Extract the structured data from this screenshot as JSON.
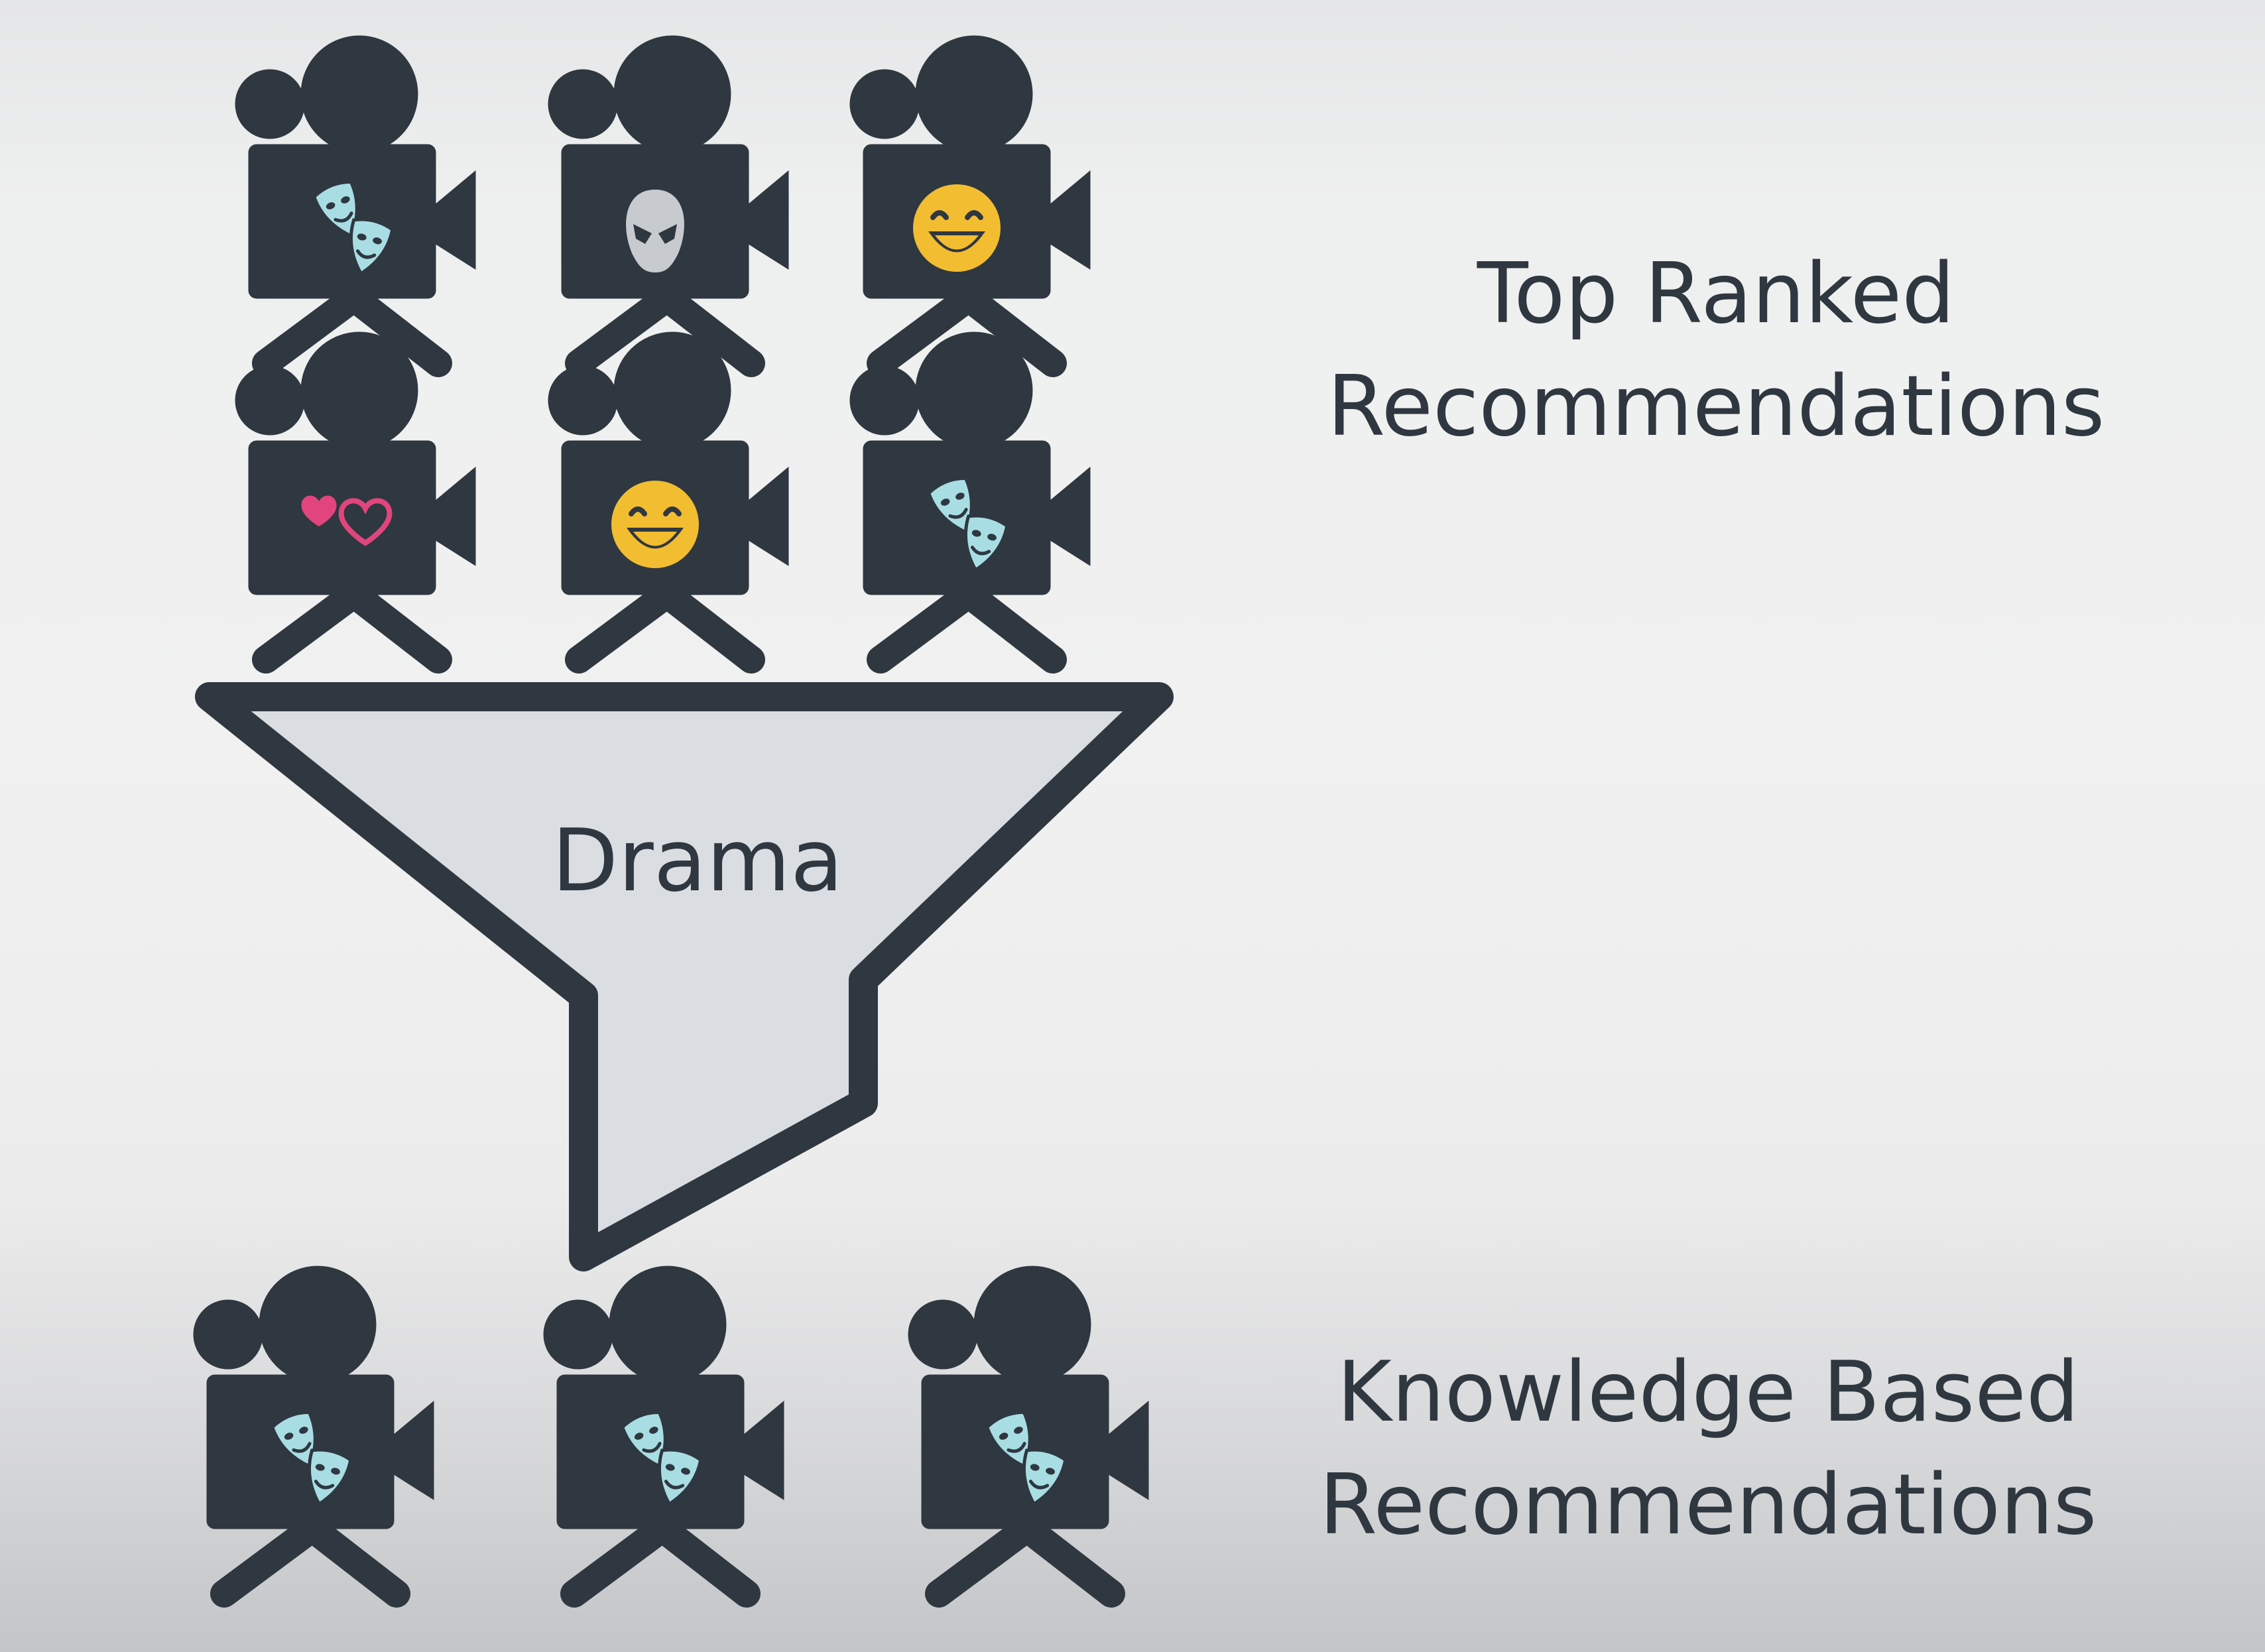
{
  "top_caption": {
    "line1": "Top Ranked",
    "line2": "Recommendations"
  },
  "funnel": {
    "label": "Drama",
    "fill_color": "#dadee2"
  },
  "bottom_caption": {
    "line1": "Knowledge Based",
    "line2": "Recommendations"
  },
  "colors": {
    "camera": "#2f3740",
    "drama_mask": "#a9dde4",
    "alien": "#c7cace",
    "smiley": "#f2bd31",
    "hearts": "#e2457d"
  },
  "top_movies": [
    {
      "genre": "drama",
      "icon": "drama-masks-icon"
    },
    {
      "genre": "sci-fi",
      "icon": "alien-icon"
    },
    {
      "genre": "comedy",
      "icon": "smiley-icon"
    },
    {
      "genre": "romance",
      "icon": "hearts-icon"
    },
    {
      "genre": "comedy",
      "icon": "smiley-icon"
    },
    {
      "genre": "drama",
      "icon": "drama-masks-icon"
    }
  ],
  "filtered_movies": [
    {
      "genre": "drama",
      "icon": "drama-masks-icon"
    },
    {
      "genre": "drama",
      "icon": "drama-masks-icon"
    },
    {
      "genre": "drama",
      "icon": "drama-masks-icon"
    }
  ]
}
